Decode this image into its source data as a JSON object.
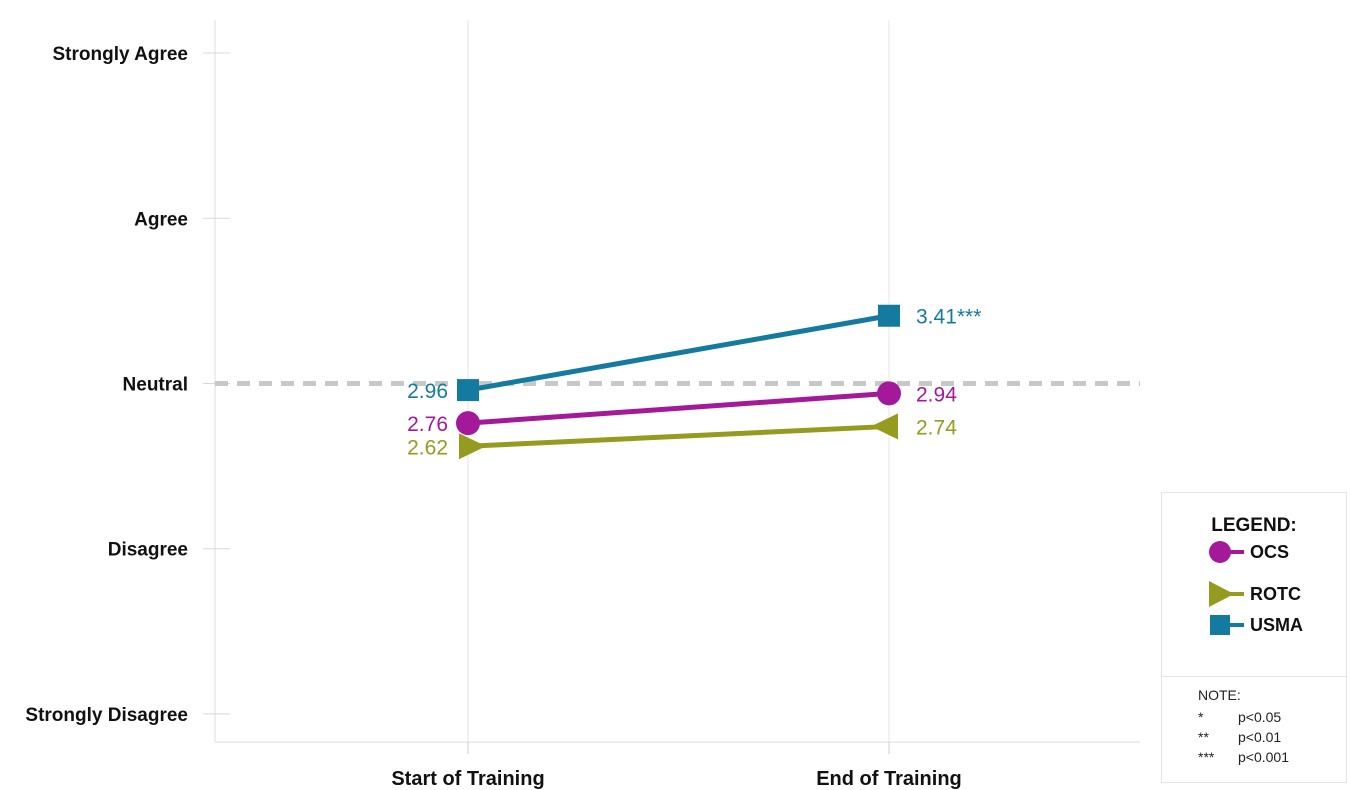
{
  "chart_data": {
    "type": "line",
    "categories": [
      "Start of Training",
      "End of Training"
    ],
    "y_ticks": [
      {
        "value": 1,
        "label": "Strongly Disagree"
      },
      {
        "value": 2,
        "label": "Disagree"
      },
      {
        "value": 3,
        "label": "Neutral"
      },
      {
        "value": 4,
        "label": "Agree"
      },
      {
        "value": 5,
        "label": "Strongly Agree"
      }
    ],
    "ylim": [
      0.83,
      5.2
    ],
    "reference_line": {
      "value": 3,
      "style": "dashed",
      "color": "#c8c8c8"
    },
    "grid": "vertical",
    "series": [
      {
        "name": "USMA",
        "color": "#157aa0",
        "marker": "square",
        "values": [
          2.96,
          3.41
        ],
        "labels": [
          "2.96",
          "3.41***"
        ]
      },
      {
        "name": "OCS",
        "color": "#a3199a",
        "marker": "circle",
        "values": [
          2.76,
          2.94
        ],
        "labels": [
          "2.76",
          "2.94"
        ]
      },
      {
        "name": "ROTC",
        "color": "#959b1e",
        "marker": "triangle",
        "values": [
          2.62,
          2.74
        ],
        "labels": [
          "2.62",
          "2.74"
        ]
      }
    ]
  },
  "legend": {
    "title": "LEGEND:",
    "items": [
      {
        "label": "OCS",
        "color": "#a3199a",
        "marker": "circle"
      },
      {
        "label": "ROTC",
        "color": "#959b1e",
        "marker": "triangle"
      },
      {
        "label": "USMA",
        "color": "#157aa0",
        "marker": "square"
      }
    ]
  },
  "note": {
    "title": "NOTE:",
    "rows": [
      {
        "symbol": "*",
        "text": "p<0.05"
      },
      {
        "symbol": "**",
        "text": "p<0.01"
      },
      {
        "symbol": "***",
        "text": "p<0.001"
      }
    ]
  }
}
